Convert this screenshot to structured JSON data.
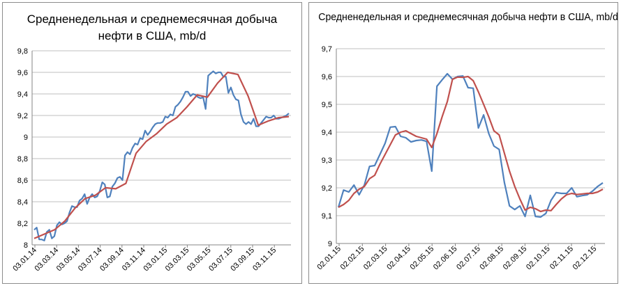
{
  "chart_data": [
    {
      "type": "line",
      "title": "Средненедельная и среднемесячная добыча нефти в США, mb/d",
      "xlabel": "",
      "ylabel": "",
      "ylim": [
        8,
        9.8
      ],
      "y_ticks": [
        "8",
        "8,2",
        "8,4",
        "8,6",
        "8,8",
        "9",
        "9,2",
        "9,4",
        "9,6",
        "9,8"
      ],
      "x_tick_labels": [
        "03.01.14",
        "03.03.14",
        "03.05.14",
        "03.07.14",
        "03.09.14",
        "03.11.14",
        "03.01.15",
        "03.03.15",
        "03.05.15",
        "03.07.15",
        "03.09.15",
        "03.11.15"
      ],
      "grid": true,
      "legend": "none",
      "colors": {
        "weekly": "#4f81bd",
        "monthly": "#c0504d"
      },
      "series": [
        {
          "key": "weekly",
          "values": [
            8.14,
            8.16,
            8.05,
            8.05,
            8.04,
            8.12,
            8.14,
            8.06,
            8.08,
            8.18,
            8.21,
            8.19,
            8.2,
            8.22,
            8.3,
            8.36,
            8.35,
            8.35,
            8.41,
            8.43,
            8.47,
            8.38,
            8.44,
            8.47,
            8.44,
            8.45,
            8.5,
            8.58,
            8.56,
            8.44,
            8.45,
            8.54,
            8.57,
            8.62,
            8.63,
            8.6,
            8.83,
            8.86,
            8.84,
            8.9,
            8.94,
            8.93,
            8.99,
            8.98,
            9.06,
            9.02,
            9.05,
            9.09,
            9.12,
            9.13,
            9.13,
            9.14,
            9.19,
            9.18,
            9.21,
            9.2,
            9.28,
            9.3,
            9.33,
            9.37,
            9.42,
            9.42,
            9.38,
            9.4,
            9.39,
            9.37,
            9.36,
            9.37,
            9.26,
            9.57,
            9.59,
            9.61,
            9.59,
            9.6,
            9.6,
            9.56,
            9.56,
            9.41,
            9.46,
            9.39,
            9.35,
            9.34,
            9.21,
            9.14,
            9.12,
            9.14,
            9.12,
            9.17,
            9.1,
            9.1,
            9.13,
            9.16,
            9.19,
            9.18,
            9.18,
            9.2,
            9.17,
            9.17,
            9.18,
            9.19,
            9.2,
            9.22
          ]
        },
        {
          "key": "monthly",
          "values": [
            8.06,
            8.1,
            8.14,
            8.22,
            8.34,
            8.43,
            8.46,
            8.53,
            8.52,
            8.57,
            8.85,
            8.96,
            9.03,
            9.12,
            9.18,
            9.28,
            9.39,
            9.37,
            9.5,
            9.6,
            9.58,
            9.38,
            9.11,
            9.15,
            9.18,
            9.19
          ]
        }
      ]
    },
    {
      "type": "line",
      "title": "Средненедельная и среднемесячная добыча нефти в США, mb/d",
      "xlabel": "",
      "ylabel": "",
      "ylim": [
        9,
        9.7
      ],
      "y_ticks": [
        "9",
        "9,1",
        "9,2",
        "9,3",
        "9,4",
        "9,5",
        "9,6",
        "9,7"
      ],
      "x_tick_labels": [
        "02.01.15",
        "02.02.15",
        "02.03.15",
        "02.04.15",
        "02.05.15",
        "02.06.15",
        "02.07.15",
        "02.08.15",
        "02.09.15",
        "02.10.15",
        "02.11.15",
        "02.12.15"
      ],
      "grid": true,
      "legend": "none",
      "colors": {
        "weekly": "#4f81bd",
        "monthly": "#c0504d"
      },
      "series": [
        {
          "key": "weekly",
          "values": [
            9.13,
            9.192,
            9.185,
            9.21,
            9.175,
            9.21,
            9.277,
            9.28,
            9.32,
            9.36,
            9.418,
            9.42,
            9.385,
            9.38,
            9.365,
            9.37,
            9.372,
            9.367,
            9.26,
            9.565,
            9.588,
            9.61,
            9.59,
            9.6,
            9.602,
            9.56,
            9.558,
            9.415,
            9.462,
            9.395,
            9.35,
            9.338,
            9.22,
            9.135,
            9.122,
            9.135,
            9.097,
            9.173,
            9.097,
            9.095,
            9.108,
            9.155,
            9.183,
            9.18,
            9.18,
            9.2,
            9.168,
            9.172,
            9.175,
            9.188,
            9.205,
            9.218
          ]
        },
        {
          "key": "monthly",
          "values": [
            9.13,
            9.14,
            9.155,
            9.18,
            9.195,
            9.205,
            9.233,
            9.245,
            9.285,
            9.32,
            9.355,
            9.39,
            9.4,
            9.405,
            9.395,
            9.385,
            9.38,
            9.375,
            9.345,
            9.395,
            9.455,
            9.51,
            9.59,
            9.598,
            9.597,
            9.6,
            9.585,
            9.545,
            9.5,
            9.455,
            9.405,
            9.39,
            9.325,
            9.26,
            9.205,
            9.16,
            9.12,
            9.13,
            9.125,
            9.115,
            9.12,
            9.118,
            9.14,
            9.16,
            9.175,
            9.18,
            9.176,
            9.178,
            9.18,
            9.18,
            9.185,
            9.195
          ]
        }
      ]
    }
  ]
}
